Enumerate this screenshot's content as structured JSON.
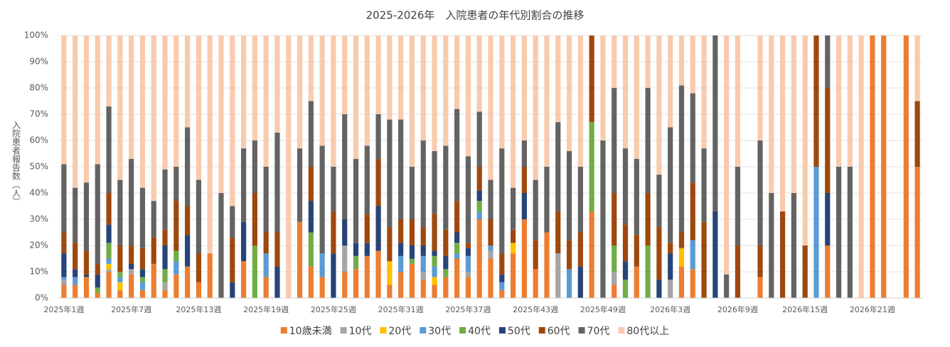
{
  "chart_data": {
    "type": "stacked_bar_100",
    "title": "2025-2026年　入院患者の年代別割合の推移",
    "y_label": "入院患者報告数（人）",
    "categories": [
      "2025年1週",
      null,
      null,
      null,
      null,
      null,
      "2025年7週",
      null,
      null,
      null,
      null,
      null,
      "2025年13週",
      null,
      null,
      null,
      null,
      null,
      "2025年19週",
      null,
      null,
      null,
      null,
      null,
      "2025年25週",
      null,
      null,
      null,
      null,
      null,
      "2025年31週",
      null,
      null,
      null,
      null,
      null,
      "2025年37週",
      null,
      null,
      null,
      null,
      null,
      "2025年43週",
      null,
      null,
      null,
      null,
      null,
      "2025年49週",
      null,
      null,
      null,
      null,
      null,
      "2026年3週",
      null,
      null,
      null,
      null,
      null,
      "2026年9週",
      null,
      null,
      null,
      null,
      null,
      "2026年15週",
      null,
      null,
      null,
      null,
      null,
      "2026年21週",
      null,
      null,
      null,
      null
    ],
    "series": [
      {
        "name": "10歳未満",
        "color": "#ED7D31",
        "values": [
          5,
          5,
          8,
          2,
          10,
          3,
          9,
          3,
          13,
          3,
          9,
          12,
          6,
          17,
          0,
          0,
          14,
          0,
          8,
          0,
          0,
          29,
          12,
          8,
          0,
          10,
          11,
          16,
          18,
          5,
          10,
          13,
          7,
          5,
          8,
          15,
          8,
          30,
          15,
          3,
          17,
          30,
          11,
          25,
          0,
          0,
          0,
          33,
          0,
          5,
          0,
          12,
          0,
          0,
          0,
          12,
          11,
          0,
          0,
          0,
          0,
          0,
          8,
          0,
          0,
          0,
          0,
          0,
          20,
          0,
          0,
          0,
          100,
          100,
          0,
          100,
          50
        ]
      },
      {
        "name": "10代",
        "color": "#A5A5A5",
        "values": [
          2,
          0,
          0,
          0,
          1,
          0,
          2,
          0,
          0,
          3,
          0,
          0,
          0,
          0,
          0,
          0,
          0,
          0,
          0,
          0,
          0,
          0,
          0,
          0,
          0,
          10,
          0,
          0,
          0,
          0,
          0,
          0,
          3,
          0,
          0,
          0,
          2,
          0,
          3,
          0,
          0,
          0,
          0,
          0,
          17,
          0,
          0,
          0,
          0,
          5,
          0,
          0,
          0,
          0,
          7,
          0,
          0,
          0,
          0,
          0,
          0,
          0,
          0,
          0,
          0,
          0,
          0,
          0,
          0,
          0,
          0,
          0,
          0,
          0,
          0,
          0,
          0
        ]
      },
      {
        "name": "20代",
        "color": "#FFC000",
        "values": [
          0,
          0,
          0,
          0,
          2,
          3,
          0,
          0,
          0,
          0,
          0,
          0,
          0,
          0,
          0,
          0,
          0,
          0,
          0,
          0,
          0,
          0,
          0,
          0,
          0,
          0,
          0,
          0,
          0,
          9,
          0,
          0,
          0,
          3,
          0,
          0,
          0,
          0,
          0,
          0,
          4,
          0,
          0,
          0,
          0,
          0,
          0,
          0,
          0,
          0,
          0,
          0,
          0,
          0,
          0,
          7,
          0,
          0,
          0,
          0,
          0,
          0,
          0,
          0,
          0,
          0,
          0,
          0,
          0,
          0,
          0,
          0,
          0,
          0,
          0,
          0,
          0
        ]
      },
      {
        "name": "30代",
        "color": "#5B9BD5",
        "values": [
          1,
          3,
          0,
          0,
          2,
          2,
          0,
          3,
          0,
          0,
          5,
          0,
          0,
          0,
          0,
          0,
          0,
          0,
          9,
          0,
          0,
          0,
          0,
          9,
          0,
          0,
          0,
          0,
          0,
          0,
          6,
          0,
          6,
          4,
          0,
          2,
          6,
          3,
          2,
          3,
          0,
          0,
          0,
          0,
          0,
          11,
          0,
          0,
          0,
          0,
          0,
          0,
          0,
          0,
          0,
          0,
          11,
          0,
          0,
          0,
          0,
          0,
          0,
          0,
          0,
          0,
          0,
          50,
          0,
          0,
          0,
          0,
          0,
          0,
          0,
          0,
          0
        ]
      },
      {
        "name": "40代",
        "color": "#70AD47",
        "values": [
          0,
          0,
          0,
          2,
          6,
          2,
          0,
          2,
          0,
          5,
          4,
          0,
          0,
          0,
          0,
          0,
          0,
          20,
          0,
          0,
          0,
          0,
          13,
          0,
          0,
          0,
          5,
          0,
          0,
          0,
          0,
          2,
          0,
          4,
          3,
          4,
          0,
          4,
          0,
          0,
          0,
          0,
          0,
          0,
          0,
          0,
          0,
          34,
          0,
          10,
          7,
          0,
          20,
          0,
          0,
          0,
          0,
          0,
          0,
          0,
          0,
          0,
          0,
          0,
          0,
          0,
          0,
          0,
          0,
          0,
          0,
          0,
          0,
          0,
          0,
          0,
          0
        ]
      },
      {
        "name": "50代",
        "color": "#264478",
        "values": [
          9,
          3,
          1,
          5,
          7,
          0,
          2,
          3,
          0,
          9,
          0,
          12,
          0,
          0,
          0,
          6,
          15,
          0,
          0,
          12,
          0,
          0,
          12,
          0,
          17,
          10,
          5,
          5,
          17,
          0,
          5,
          5,
          4,
          2,
          5,
          4,
          3,
          4,
          0,
          3,
          0,
          10,
          0,
          0,
          0,
          0,
          12,
          0,
          0,
          0,
          7,
          0,
          0,
          7,
          10,
          0,
          0,
          0,
          33,
          0,
          0,
          0,
          0,
          0,
          0,
          0,
          0,
          0,
          20,
          0,
          0,
          0,
          0,
          0,
          0,
          0,
          0
        ]
      },
      {
        "name": "60代",
        "color": "#9E480E",
        "values": [
          8,
          10,
          9,
          4,
          12,
          10,
          7,
          8,
          10,
          6,
          19,
          11,
          11,
          0,
          0,
          17,
          0,
          20,
          8,
          13,
          0,
          0,
          13,
          0,
          16,
          0,
          0,
          11,
          18,
          13,
          9,
          10,
          7,
          14,
          10,
          12,
          2,
          9,
          10,
          8,
          5,
          10,
          11,
          0,
          16,
          11,
          13,
          33,
          0,
          20,
          14,
          12,
          20,
          20,
          4,
          6,
          22,
          29,
          0,
          0,
          20,
          0,
          12,
          0,
          33,
          0,
          20,
          50,
          40,
          0,
          0,
          0,
          0,
          0,
          0,
          0,
          25
        ]
      },
      {
        "name": "70代",
        "color": "#636363",
        "values": [
          26,
          21,
          26,
          38,
          33,
          25,
          33,
          23,
          14,
          23,
          13,
          30,
          28,
          0,
          40,
          12,
          28,
          20,
          25,
          38,
          0,
          28,
          25,
          41,
          17,
          40,
          32,
          26,
          17,
          41,
          38,
          20,
          33,
          24,
          32,
          35,
          33,
          21,
          15,
          40,
          16,
          10,
          23,
          25,
          34,
          34,
          25,
          0,
          60,
          40,
          29,
          29,
          40,
          20,
          44,
          56,
          34,
          28,
          67,
          9,
          30,
          0,
          40,
          40,
          0,
          40,
          0,
          0,
          20,
          50,
          50,
          0,
          0,
          0,
          0,
          0,
          0
        ]
      },
      {
        "name": "80代以上",
        "color": "#F8CBAD",
        "values": [
          49,
          58,
          56,
          49,
          27,
          55,
          47,
          58,
          63,
          51,
          50,
          35,
          55,
          83,
          60,
          65,
          43,
          40,
          50,
          37,
          100,
          43,
          25,
          42,
          50,
          30,
          47,
          42,
          30,
          32,
          32,
          50,
          40,
          44,
          42,
          28,
          46,
          29,
          55,
          43,
          58,
          40,
          55,
          50,
          33,
          44,
          50,
          0,
          40,
          20,
          43,
          47,
          20,
          53,
          35,
          19,
          22,
          43,
          0,
          91,
          50,
          0,
          40,
          60,
          67,
          60,
          80,
          0,
          0,
          50,
          50,
          100,
          0,
          0,
          0,
          0,
          25
        ]
      }
    ],
    "ylim": [
      0,
      100
    ],
    "yticks": [
      {
        "value": 0,
        "label": "0%"
      },
      {
        "value": 10,
        "label": "10%"
      },
      {
        "value": 20,
        "label": "20%"
      },
      {
        "value": 30,
        "label": "30%"
      },
      {
        "value": 40,
        "label": "40%"
      },
      {
        "value": 50,
        "label": "50%"
      },
      {
        "value": 60,
        "label": "60%"
      },
      {
        "value": 70,
        "label": "70%"
      },
      {
        "value": 80,
        "label": "80%"
      },
      {
        "value": 90,
        "label": "90%"
      },
      {
        "value": 100,
        "label": "100%"
      }
    ],
    "grid": true,
    "legend": "bottom"
  }
}
